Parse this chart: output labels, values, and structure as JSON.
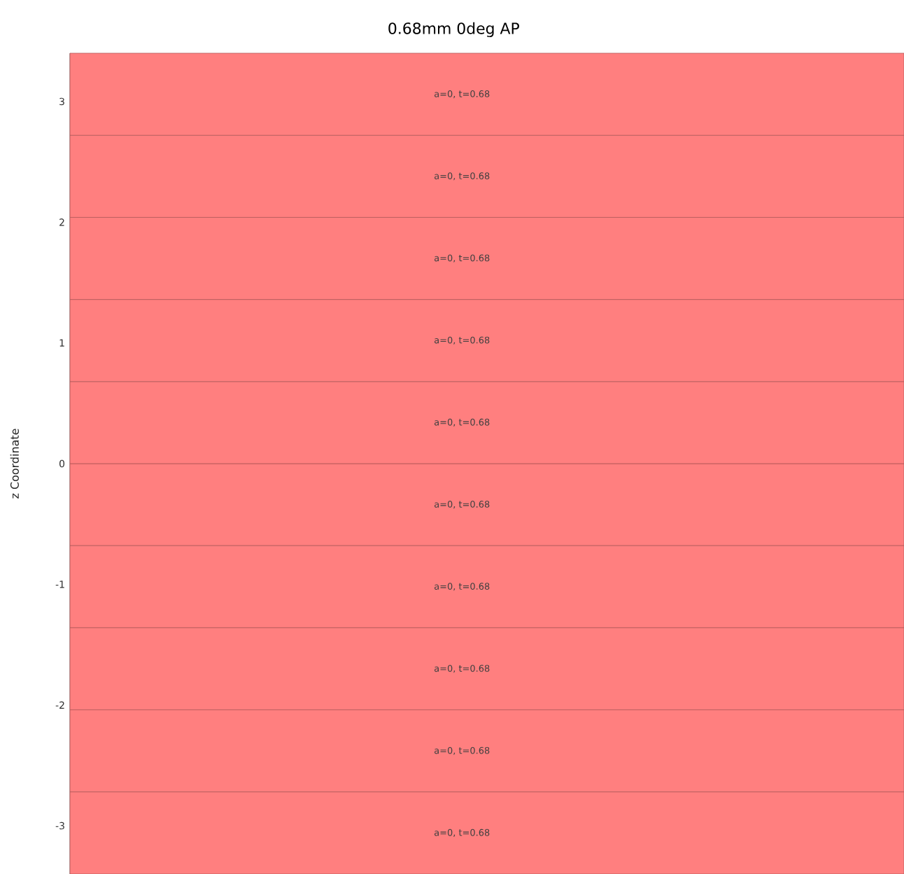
{
  "chart_data": {
    "type": "bar",
    "title": "0.68mm 0deg AP",
    "ylabel": "z Coordinate",
    "categories": [
      null
    ],
    "stacked": true,
    "ylim": [
      -3.4,
      3.4
    ],
    "yticks": [
      -3,
      -2,
      -1,
      0,
      1,
      2,
      3
    ],
    "tick_labels": "y",
    "series": [
      {
        "color": "#ff7f7f",
        "values": [
          -0.68
        ],
        "value_labels": [
          "a=0, t=0.68"
        ]
      },
      {
        "color": "#ff7f7f",
        "values": [
          -0.68
        ],
        "value_labels": [
          "a=0, t=0.68"
        ]
      },
      {
        "color": "#ff7f7f",
        "values": [
          -0.68
        ],
        "value_labels": [
          "a=0, t=0.68"
        ]
      },
      {
        "color": "#ff7f7f",
        "values": [
          -0.68
        ],
        "value_labels": [
          "a=0, t=0.68"
        ]
      },
      {
        "color": "#ff7f7f",
        "values": [
          -0.68
        ],
        "value_labels": [
          "a=0, t=0.68"
        ]
      },
      {
        "color": "#ff7f7f",
        "values": [
          0.68
        ],
        "value_labels": [
          "a=0, t=0.68"
        ]
      },
      {
        "color": "#ff7f7f",
        "values": [
          0.68
        ],
        "value_labels": [
          "a=0, t=0.68"
        ]
      },
      {
        "color": "#ff7f7f",
        "values": [
          0.68
        ],
        "value_labels": [
          "a=0, t=0.68"
        ]
      },
      {
        "color": "#ff7f7f",
        "values": [
          0.68
        ],
        "value_labels": [
          "a=0, t=0.68"
        ]
      },
      {
        "color": "#ff7f7f",
        "values": [
          0.68
        ],
        "value_labels": [
          "a=0, t=0.68"
        ]
      }
    ]
  }
}
